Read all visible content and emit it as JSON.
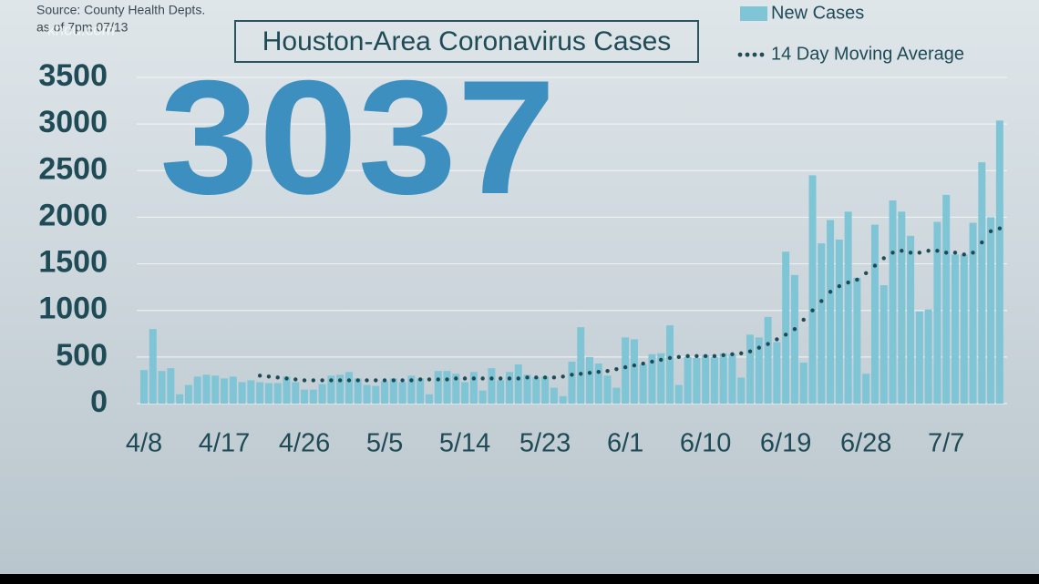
{
  "chart_data": {
    "type": "bar",
    "title": "Houston-Area Coronavirus Cases",
    "headline": "3037",
    "source": "Source: County Health Depts.",
    "as_of": "as of 7pm 07/13",
    "watermark": "khou.com",
    "categories": [
      "4/8",
      null,
      null,
      null,
      null,
      null,
      null,
      null,
      null,
      "4/17",
      null,
      null,
      null,
      null,
      null,
      null,
      null,
      null,
      "4/26",
      null,
      null,
      null,
      null,
      null,
      null,
      null,
      null,
      "5/5",
      null,
      null,
      null,
      null,
      null,
      null,
      null,
      null,
      "5/14",
      null,
      null,
      null,
      null,
      null,
      null,
      null,
      null,
      "5/23",
      null,
      null,
      null,
      null,
      null,
      null,
      null,
      null,
      "6/1",
      null,
      null,
      null,
      null,
      null,
      null,
      null,
      null,
      "6/10",
      null,
      null,
      null,
      null,
      null,
      null,
      null,
      null,
      "6/19",
      null,
      null,
      null,
      null,
      null,
      null,
      null,
      null,
      "6/28",
      null,
      null,
      null,
      null,
      null,
      null,
      null,
      null,
      "7/7",
      null,
      null,
      null,
      null,
      null,
      null
    ],
    "series": [
      {
        "name": "New Cases",
        "type": "bar",
        "color": "#80c5d5",
        "values": [
          360,
          800,
          350,
          380,
          100,
          200,
          290,
          310,
          300,
          270,
          290,
          230,
          250,
          230,
          220,
          220,
          290,
          230,
          150,
          150,
          210,
          300,
          310,
          340,
          270,
          200,
          190,
          240,
          270,
          230,
          300,
          270,
          100,
          350,
          350,
          320,
          230,
          340,
          140,
          380,
          250,
          340,
          420,
          310,
          280,
          290,
          170,
          80,
          450,
          820,
          500,
          430,
          300,
          170,
          710,
          690,
          420,
          530,
          540,
          840,
          200,
          500,
          490,
          520,
          500,
          540,
          530,
          280,
          740,
          710,
          930,
          660,
          1630,
          1380,
          440,
          2450,
          1720,
          1970,
          1760,
          2060,
          1350,
          320,
          1920,
          1270,
          2180,
          2060,
          1800,
          990,
          1010,
          1950,
          2240,
          1600,
          1600,
          1940,
          2590,
          2000,
          3037
        ]
      },
      {
        "name": "14 Day Moving Average",
        "type": "line",
        "color": "#1f4b57",
        "values": [
          null,
          null,
          null,
          null,
          null,
          null,
          null,
          null,
          null,
          null,
          null,
          null,
          null,
          300,
          290,
          280,
          270,
          260,
          250,
          250,
          250,
          250,
          250,
          250,
          250,
          250,
          250,
          250,
          250,
          250,
          250,
          260,
          260,
          260,
          260,
          270,
          270,
          270,
          270,
          270,
          270,
          270,
          270,
          280,
          280,
          280,
          280,
          290,
          310,
          320,
          330,
          340,
          350,
          370,
          390,
          410,
          430,
          450,
          470,
          490,
          500,
          510,
          510,
          510,
          510,
          520,
          530,
          540,
          560,
          600,
          640,
          690,
          740,
          800,
          900,
          1000,
          1100,
          1200,
          1260,
          1300,
          1330,
          1400,
          1480,
          1560,
          1620,
          1640,
          1620,
          1620,
          1640,
          1640,
          1620,
          1620,
          1600,
          1620,
          1730,
          1850,
          1880
        ]
      }
    ],
    "ylim": [
      0,
      3500
    ],
    "yticks": [
      0,
      500,
      1000,
      1500,
      2000,
      2500,
      3000,
      3500
    ],
    "grid": true
  }
}
